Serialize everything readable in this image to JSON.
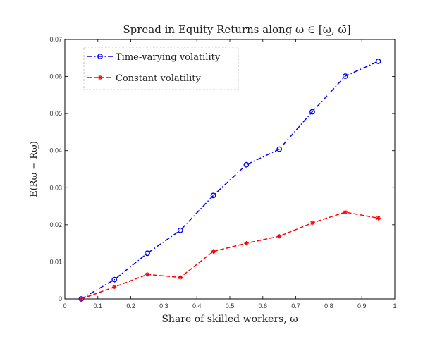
{
  "chart_data": {
    "type": "line",
    "title": "Spread in Equity Returns along ω ∈ [ω̲, ω̄]",
    "xlabel": "Share of skilled workers, ω",
    "ylabel": "E(Rω − Rω̲)",
    "xlim": [
      0,
      1
    ],
    "ylim": [
      0,
      0.07
    ],
    "xticks": [
      "0",
      "0.1",
      "0.2",
      "0.3",
      "0.4",
      "0.5",
      "0.6",
      "0.7",
      "0.8",
      "0.9",
      "1"
    ],
    "yticks": [
      "0",
      "0.01",
      "0.02",
      "0.03",
      "0.04",
      "0.05",
      "0.06",
      "0.07"
    ],
    "grid": false,
    "legend_position": "top-left",
    "x": [
      0.05,
      0.15,
      0.25,
      0.35,
      0.45,
      0.55,
      0.65,
      0.75,
      0.85,
      0.95
    ],
    "series": [
      {
        "name": "Time-varying volatility",
        "color": "#0000ff",
        "marker": "circle",
        "line_style": "dash-dot",
        "values": [
          0.0,
          0.0052,
          0.0123,
          0.0185,
          0.0279,
          0.0362,
          0.0404,
          0.0505,
          0.0601,
          0.0641
        ]
      },
      {
        "name": "Constant volatility",
        "color": "#ff0000",
        "marker": "star",
        "line_style": "dashed",
        "values": [
          0.0,
          0.0032,
          0.0066,
          0.0058,
          0.0128,
          0.015,
          0.0169,
          0.0205,
          0.0234,
          0.0218
        ]
      }
    ]
  }
}
